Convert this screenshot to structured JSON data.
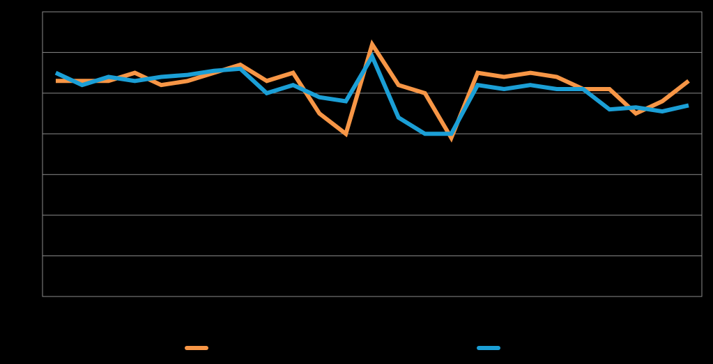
{
  "chart_data": {
    "type": "line",
    "title": "",
    "xlabel": "",
    "ylabel": "",
    "ylim": [
      0,
      7
    ],
    "grid": true,
    "legend_placement": "bottom",
    "background_color": "#000000",
    "plot_border_color": "#8c8c8c",
    "gridline_color": "#8c8c8c",
    "x": [
      1,
      2,
      3,
      4,
      5,
      6,
      7,
      8,
      9,
      10,
      11,
      12,
      13,
      14,
      15,
      16,
      17,
      18,
      19,
      20,
      21,
      22,
      23,
      24,
      25
    ],
    "series": [
      {
        "name": "",
        "color": "#f79646",
        "values": [
          5.3,
          5.3,
          5.3,
          5.5,
          5.2,
          5.3,
          5.5,
          5.7,
          5.3,
          5.5,
          4.5,
          4.0,
          6.2,
          5.2,
          5.0,
          3.9,
          5.5,
          5.4,
          5.5,
          5.4,
          5.1,
          5.1,
          4.5,
          4.8,
          5.3
        ]
      },
      {
        "name": "",
        "color": "#1b9fd6",
        "values": [
          5.5,
          5.2,
          5.4,
          5.3,
          5.4,
          5.45,
          5.55,
          5.6,
          5.0,
          5.2,
          4.9,
          4.8,
          5.9,
          4.4,
          4.0,
          4.0,
          5.2,
          5.1,
          5.2,
          5.1,
          5.1,
          4.6,
          4.65,
          4.55,
          4.7
        ]
      }
    ]
  }
}
